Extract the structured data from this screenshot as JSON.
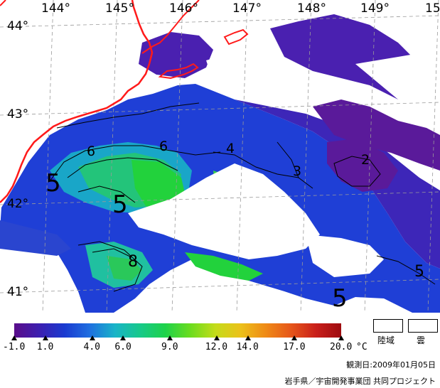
{
  "map": {
    "lon_labels": [
      "144°",
      "145°",
      "146°",
      "147°",
      "148°",
      "149°",
      "15"
    ],
    "lat_labels": [
      "44°",
      "43°",
      "42°",
      "41°"
    ],
    "contour_labels": [
      "6",
      "6",
      "4",
      "3",
      "2",
      "5",
      "5",
      "8",
      "5",
      "5"
    ]
  },
  "colorbar": {
    "unit": "°C",
    "range": [
      -1.0,
      20.0
    ],
    "tick_labels": [
      "-1.0",
      "1.0",
      "4.0",
      "6.0",
      "9.0",
      "12.0",
      "14.0",
      "17.0",
      "20.0"
    ],
    "colors": [
      "#5a0d8a",
      "#3c1fb0",
      "#1a3ad0",
      "#1f6fe0",
      "#19b4c8",
      "#17c98a",
      "#1ed24a",
      "#6bdc1e",
      "#c4dc1a",
      "#ecc11a",
      "#ef8a16",
      "#e6561a",
      "#c91f1a",
      "#9e0b10"
    ]
  },
  "legend": {
    "land": "陸域",
    "cloud": "雲"
  },
  "observation_date": "観測日:2009年01月05日",
  "credit": "岩手県／宇宙開発事業団 共同プロジェクト"
}
